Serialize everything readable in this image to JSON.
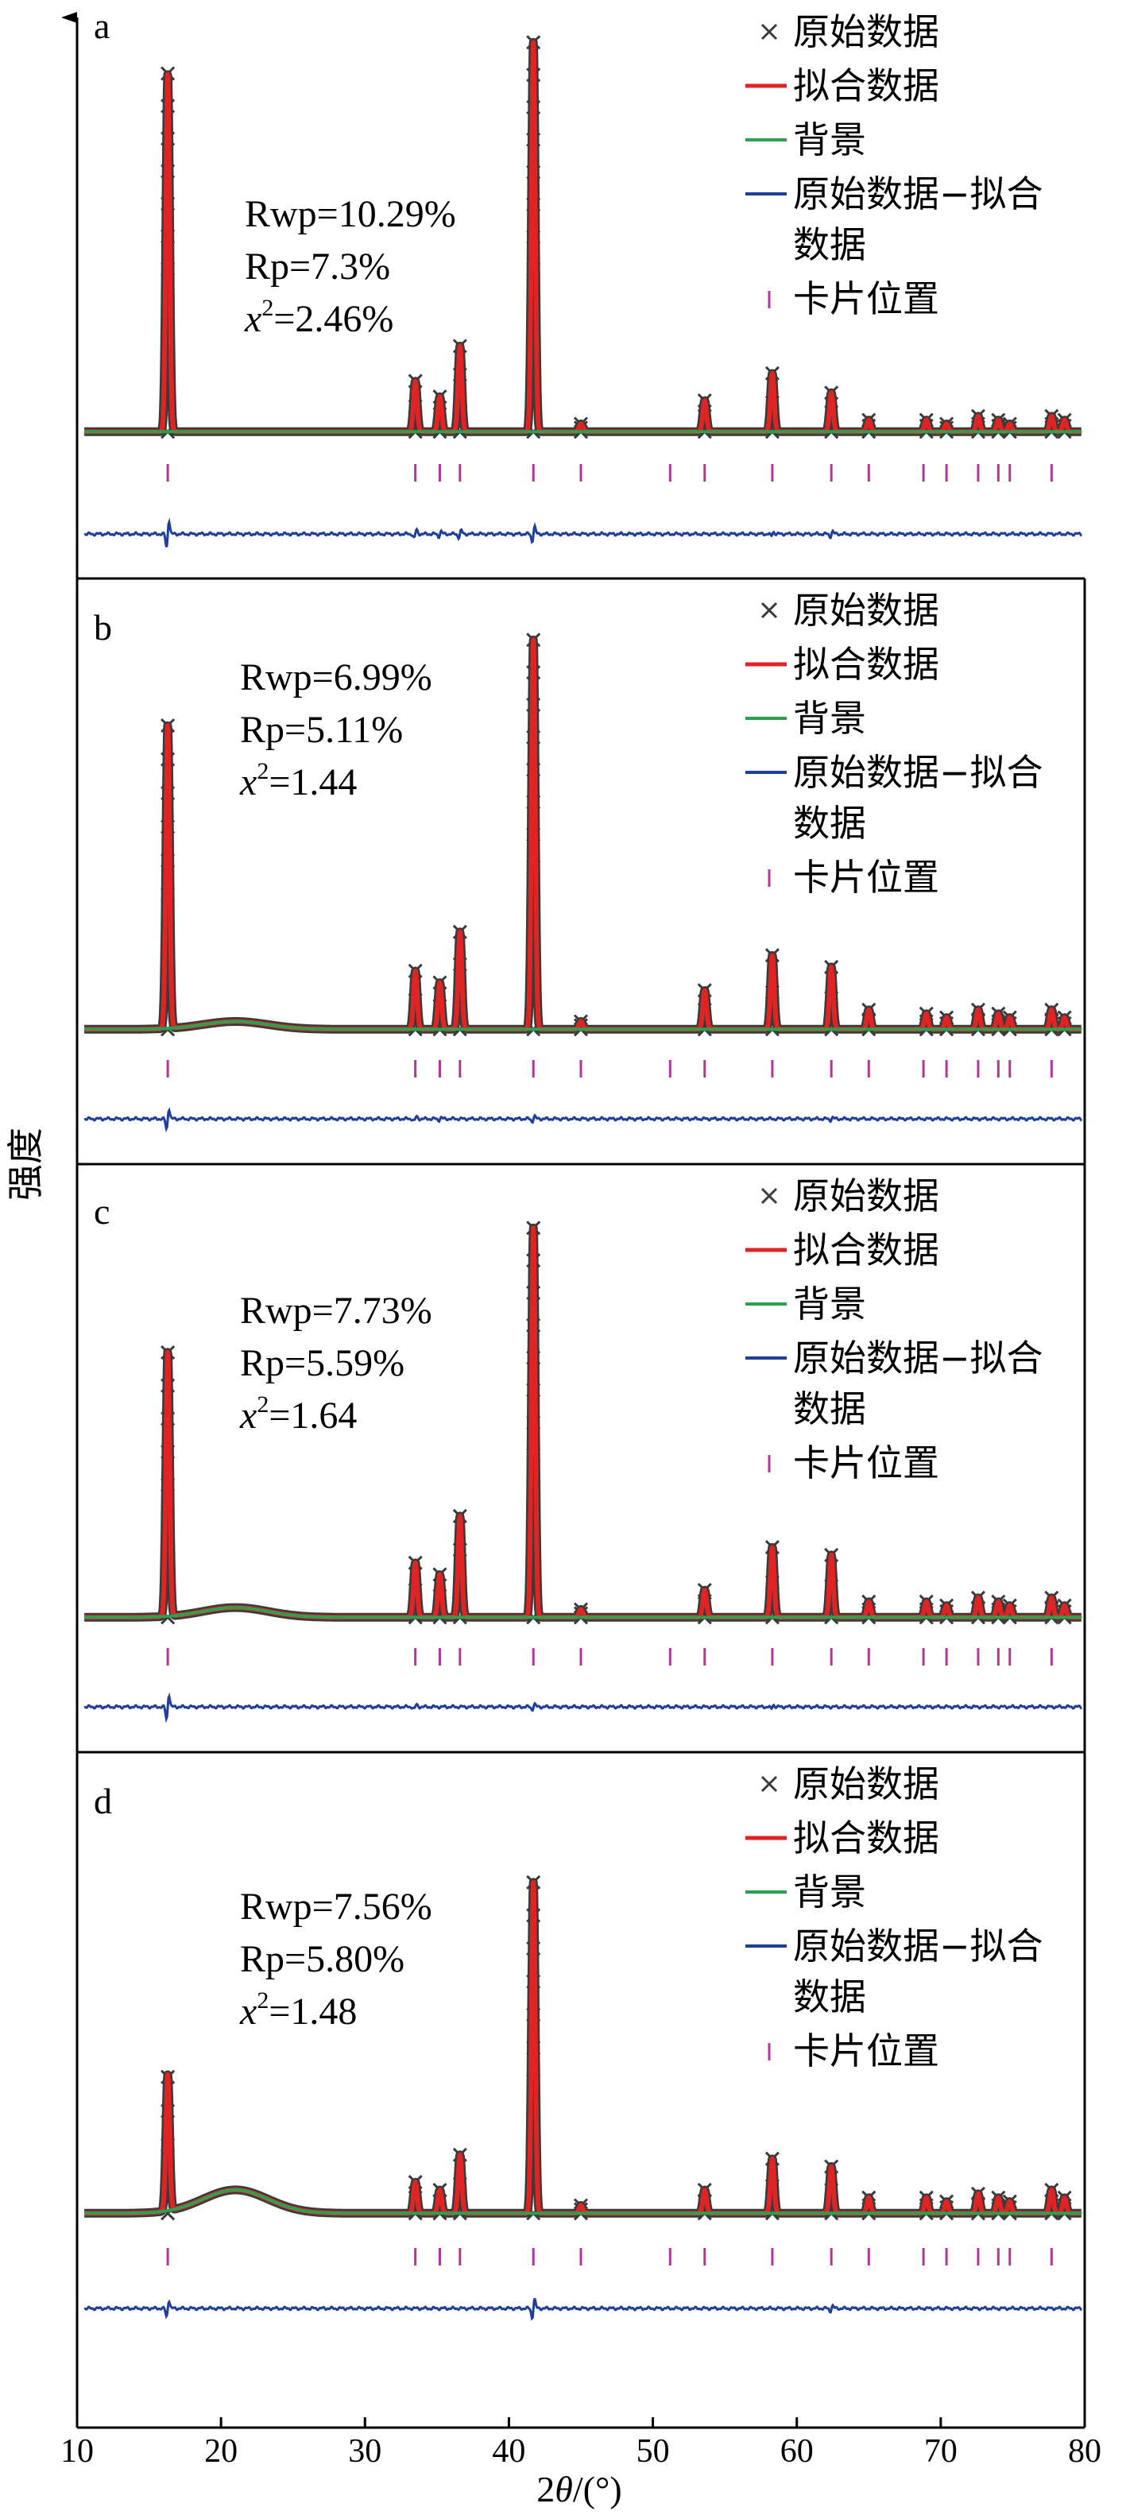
{
  "figure": {
    "ylabel": "强度",
    "xlabel_prefix": "2",
    "xlabel_theta": "θ",
    "xlabel_suffix": "/(°)",
    "xlim": [
      10,
      80
    ],
    "xticks": [
      10,
      20,
      30,
      40,
      50,
      60,
      70,
      80
    ]
  },
  "legend": {
    "raw": "原始数据",
    "fit": "拟合数据",
    "background": "背景",
    "diff_line1": "原始数据−拟合",
    "diff_line2": "数据",
    "card": "卡片位置"
  },
  "colors": {
    "raw": "#3a3a3a",
    "fit": "#e02424",
    "background": "#2e9e4f",
    "difference": "#1f3f99",
    "card": "#b0379a"
  },
  "chart_data": [
    {
      "panel": "a",
      "type": "line",
      "stats": {
        "rwp": "Rwp=10.29%",
        "rp": "Rp=7.3%",
        "chi_sym": "x",
        "chi_exp": "2",
        "chi_val": "=2.46%"
      },
      "baseline": 0.03,
      "hump": 0.0,
      "peaks": [
        [
          16.3,
          0.92
        ],
        [
          33.5,
          0.13
        ],
        [
          35.2,
          0.09
        ],
        [
          36.6,
          0.22
        ],
        [
          41.7,
          1.0
        ],
        [
          45.0,
          0.02
        ],
        [
          53.6,
          0.08
        ],
        [
          58.3,
          0.15
        ],
        [
          62.4,
          0.1
        ],
        [
          65.0,
          0.03
        ],
        [
          69.0,
          0.03
        ],
        [
          70.4,
          0.02
        ],
        [
          72.6,
          0.04
        ],
        [
          74.0,
          0.03
        ],
        [
          74.8,
          0.02
        ],
        [
          77.7,
          0.04
        ],
        [
          78.6,
          0.03
        ]
      ],
      "card_positions": [
        16.3,
        33.5,
        35.2,
        36.6,
        41.7,
        45.0,
        51.2,
        53.6,
        58.3,
        62.4,
        65.0,
        68.8,
        70.4,
        72.6,
        74.0,
        74.8,
        77.7
      ],
      "difference_spikes": [
        [
          16.3,
          1.0
        ],
        [
          33.5,
          0.3
        ],
        [
          35.2,
          0.2
        ],
        [
          36.6,
          0.25
        ],
        [
          41.7,
          0.55
        ],
        [
          58.3,
          0.15
        ],
        [
          62.4,
          0.2
        ]
      ]
    },
    {
      "panel": "b",
      "type": "line",
      "stats": {
        "rwp": "Rwp=6.99%",
        "rp": "Rp=5.11%",
        "chi_sym": "x",
        "chi_exp": "2",
        "chi_val": "=1.44"
      },
      "baseline": 0.03,
      "hump": 0.02,
      "peaks": [
        [
          16.3,
          0.78
        ],
        [
          33.5,
          0.15
        ],
        [
          35.2,
          0.12
        ],
        [
          36.6,
          0.25
        ],
        [
          41.7,
          1.0
        ],
        [
          45.0,
          0.02
        ],
        [
          53.6,
          0.1
        ],
        [
          58.3,
          0.19
        ],
        [
          62.4,
          0.16
        ],
        [
          65.0,
          0.05
        ],
        [
          69.0,
          0.04
        ],
        [
          70.4,
          0.03
        ],
        [
          72.6,
          0.05
        ],
        [
          74.0,
          0.04
        ],
        [
          74.8,
          0.03
        ],
        [
          77.7,
          0.05
        ],
        [
          78.6,
          0.03
        ]
      ],
      "card_positions": [
        16.3,
        33.5,
        35.2,
        36.6,
        41.7,
        45.0,
        51.2,
        53.6,
        58.3,
        62.4,
        65.0,
        68.8,
        70.4,
        72.6,
        74.0,
        74.8,
        77.7
      ],
      "difference_spikes": [
        [
          16.3,
          0.75
        ],
        [
          33.5,
          0.15
        ],
        [
          35.2,
          0.1
        ],
        [
          41.7,
          0.2
        ],
        [
          62.4,
          0.1
        ]
      ]
    },
    {
      "panel": "c",
      "type": "line",
      "stats": {
        "rwp": "Rwp=7.73%",
        "rp": "Rp=5.59%",
        "chi_sym": "x",
        "chi_exp": "2",
        "chi_val": "=1.64"
      },
      "baseline": 0.03,
      "hump": 0.025,
      "peaks": [
        [
          16.3,
          0.68
        ],
        [
          33.5,
          0.14
        ],
        [
          35.2,
          0.11
        ],
        [
          36.6,
          0.26
        ],
        [
          41.7,
          1.0
        ],
        [
          45.0,
          0.02
        ],
        [
          53.6,
          0.07
        ],
        [
          58.3,
          0.18
        ],
        [
          62.4,
          0.16
        ],
        [
          65.0,
          0.04
        ],
        [
          69.0,
          0.04
        ],
        [
          70.4,
          0.03
        ],
        [
          72.6,
          0.05
        ],
        [
          74.0,
          0.04
        ],
        [
          74.8,
          0.03
        ],
        [
          77.7,
          0.05
        ],
        [
          78.6,
          0.03
        ]
      ],
      "card_positions": [
        16.3,
        33.5,
        35.2,
        36.6,
        41.7,
        45.0,
        51.2,
        53.6,
        58.3,
        62.4,
        65.0,
        68.8,
        70.4,
        72.6,
        74.0,
        74.8,
        77.7
      ],
      "difference_spikes": [
        [
          16.3,
          0.9
        ],
        [
          33.5,
          0.15
        ],
        [
          41.7,
          0.2
        ],
        [
          58.3,
          0.15
        ]
      ]
    },
    {
      "panel": "d",
      "type": "line",
      "stats": {
        "rwp": "Rwp=7.56%",
        "rp": "Rp=5.80%",
        "chi_sym": "x",
        "chi_exp": "2",
        "chi_val": "=1.48"
      },
      "baseline": 0.03,
      "hump": 0.06,
      "peaks": [
        [
          16.3,
          0.35
        ],
        [
          33.5,
          0.08
        ],
        [
          35.2,
          0.06
        ],
        [
          36.6,
          0.15
        ],
        [
          41.7,
          0.85
        ],
        [
          45.0,
          0.02
        ],
        [
          53.6,
          0.06
        ],
        [
          58.3,
          0.14
        ],
        [
          62.4,
          0.12
        ],
        [
          65.0,
          0.04
        ],
        [
          69.0,
          0.04
        ],
        [
          70.4,
          0.03
        ],
        [
          72.6,
          0.05
        ],
        [
          74.0,
          0.04
        ],
        [
          74.8,
          0.03
        ],
        [
          77.7,
          0.06
        ],
        [
          78.6,
          0.04
        ]
      ],
      "card_positions": [
        16.3,
        33.5,
        35.2,
        36.6,
        41.7,
        45.0,
        51.2,
        53.6,
        58.3,
        62.4,
        65.0,
        68.8,
        70.4,
        72.6,
        74.0,
        74.8,
        77.7
      ],
      "difference_spikes": [
        [
          16.3,
          0.6
        ],
        [
          41.7,
          0.7
        ],
        [
          62.4,
          0.2
        ]
      ]
    }
  ]
}
